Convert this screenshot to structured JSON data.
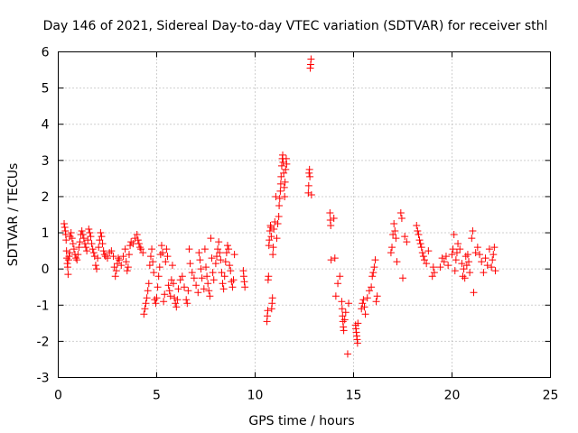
{
  "chart_data": {
    "type": "scatter",
    "title": "Day 146 of 2021, Sidereal Day-to-day VTEC variation (SDTVAR) for receiver sthl",
    "xlabel": "GPS time / hours",
    "ylabel": "SDTVAR / TECUs",
    "xlim": [
      0,
      25
    ],
    "ylim": [
      -3,
      6
    ],
    "xticks": [
      "0",
      "5",
      "10",
      "15",
      "20",
      "25"
    ],
    "yticks": [
      "-3",
      "-2",
      "-1",
      "0",
      "1",
      "2",
      "3",
      "4",
      "5",
      "6"
    ],
    "grid": true,
    "marker": "+",
    "color": "#ff0000",
    "series": [
      {
        "name": "SDTVAR",
        "points": [
          [
            0.3,
            1.25
          ],
          [
            0.33,
            1.15
          ],
          [
            0.36,
            1.05
          ],
          [
            0.38,
            0.95
          ],
          [
            0.4,
            0.8
          ],
          [
            0.42,
            0.5
          ],
          [
            0.44,
            0.3
          ],
          [
            0.46,
            0.15
          ],
          [
            0.48,
            0.05
          ],
          [
            0.5,
            -0.15
          ],
          [
            0.52,
            0.25
          ],
          [
            0.55,
            0.35
          ],
          [
            0.58,
            0.45
          ],
          [
            0.6,
            0.9
          ],
          [
            0.65,
            1.0
          ],
          [
            0.7,
            0.85
          ],
          [
            0.75,
            0.7
          ],
          [
            0.8,
            0.55
          ],
          [
            0.85,
            0.4
          ],
          [
            0.9,
            0.3
          ],
          [
            0.95,
            0.25
          ],
          [
            1.0,
            0.4
          ],
          [
            1.05,
            0.6
          ],
          [
            1.1,
            0.75
          ],
          [
            1.15,
            0.95
          ],
          [
            1.2,
            1.05
          ],
          [
            1.25,
            0.95
          ],
          [
            1.3,
            0.85
          ],
          [
            1.35,
            0.7
          ],
          [
            1.4,
            0.6
          ],
          [
            1.45,
            0.5
          ],
          [
            1.5,
            0.8
          ],
          [
            1.55,
            1.1
          ],
          [
            1.6,
            1.0
          ],
          [
            1.65,
            0.9
          ],
          [
            1.7,
            0.7
          ],
          [
            1.75,
            0.55
          ],
          [
            1.8,
            0.45
          ],
          [
            1.85,
            0.35
          ],
          [
            1.9,
            0.1
          ],
          [
            1.95,
            0.0
          ],
          [
            2.0,
            0.3
          ],
          [
            2.05,
            0.6
          ],
          [
            2.1,
            0.8
          ],
          [
            2.15,
            1.0
          ],
          [
            2.2,
            0.9
          ],
          [
            2.25,
            0.7
          ],
          [
            2.3,
            0.5
          ],
          [
            2.35,
            0.4
          ],
          [
            2.4,
            0.35
          ],
          [
            2.5,
            0.3
          ],
          [
            2.6,
            0.45
          ],
          [
            2.7,
            0.5
          ],
          [
            2.8,
            0.35
          ],
          [
            2.85,
            0.05
          ],
          [
            2.9,
            -0.2
          ],
          [
            2.95,
            -0.05
          ],
          [
            3.0,
            0.15
          ],
          [
            3.05,
            0.3
          ],
          [
            3.1,
            0.25
          ],
          [
            3.2,
            0.1
          ],
          [
            3.3,
            0.35
          ],
          [
            3.4,
            0.55
          ],
          [
            3.45,
            0.2
          ],
          [
            3.5,
            -0.05
          ],
          [
            3.55,
            0.05
          ],
          [
            3.6,
            0.4
          ],
          [
            3.65,
            0.65
          ],
          [
            3.7,
            0.75
          ],
          [
            3.8,
            0.7
          ],
          [
            3.9,
            0.85
          ],
          [
            4.0,
            0.95
          ],
          [
            4.05,
            0.8
          ],
          [
            4.1,
            0.7
          ],
          [
            4.15,
            0.6
          ],
          [
            4.2,
            0.55
          ],
          [
            4.3,
            0.45
          ],
          [
            4.35,
            -1.25
          ],
          [
            4.4,
            -1.1
          ],
          [
            4.45,
            -0.95
          ],
          [
            4.5,
            -0.8
          ],
          [
            4.55,
            -0.6
          ],
          [
            4.6,
            -0.4
          ],
          [
            4.65,
            0.1
          ],
          [
            4.7,
            0.35
          ],
          [
            4.75,
            0.55
          ],
          [
            4.8,
            0.2
          ],
          [
            4.85,
            -0.1
          ],
          [
            4.9,
            -0.85
          ],
          [
            4.95,
            -0.95
          ],
          [
            5.0,
            -0.8
          ],
          [
            5.05,
            -0.5
          ],
          [
            5.1,
            -0.2
          ],
          [
            5.15,
            0.05
          ],
          [
            5.2,
            0.4
          ],
          [
            5.25,
            0.65
          ],
          [
            5.3,
            0.45
          ],
          [
            5.35,
            -0.9
          ],
          [
            5.4,
            -0.7
          ],
          [
            5.45,
            0.2
          ],
          [
            5.5,
            0.55
          ],
          [
            5.55,
            0.35
          ],
          [
            5.6,
            -0.45
          ],
          [
            5.65,
            -0.6
          ],
          [
            5.7,
            -0.75
          ],
          [
            5.75,
            -0.3
          ],
          [
            5.8,
            0.1
          ],
          [
            5.85,
            -0.4
          ],
          [
            5.9,
            -0.8
          ],
          [
            5.95,
            -0.95
          ],
          [
            6.0,
            -1.05
          ],
          [
            6.05,
            -0.85
          ],
          [
            6.1,
            -0.55
          ],
          [
            6.2,
            -0.3
          ],
          [
            6.3,
            -0.2
          ],
          [
            6.4,
            -0.5
          ],
          [
            6.5,
            -0.85
          ],
          [
            6.55,
            -0.95
          ],
          [
            6.6,
            -0.6
          ],
          [
            6.65,
            0.55
          ],
          [
            6.7,
            0.15
          ],
          [
            6.8,
            -0.1
          ],
          [
            6.9,
            -0.25
          ],
          [
            7.0,
            -0.45
          ],
          [
            7.1,
            -0.65
          ],
          [
            7.15,
            0.45
          ],
          [
            7.2,
            0.25
          ],
          [
            7.25,
            0.0
          ],
          [
            7.3,
            -0.25
          ],
          [
            7.4,
            -0.55
          ],
          [
            7.45,
            0.55
          ],
          [
            7.5,
            0.05
          ],
          [
            7.55,
            -0.2
          ],
          [
            7.6,
            -0.4
          ],
          [
            7.65,
            -0.6
          ],
          [
            7.7,
            -0.75
          ],
          [
            7.75,
            0.85
          ],
          [
            7.8,
            0.3
          ],
          [
            7.85,
            -0.1
          ],
          [
            7.9,
            -0.3
          ],
          [
            8.0,
            0.15
          ],
          [
            8.05,
            0.35
          ],
          [
            8.1,
            0.55
          ],
          [
            8.15,
            0.75
          ],
          [
            8.2,
            0.45
          ],
          [
            8.25,
            0.25
          ],
          [
            8.3,
            -0.1
          ],
          [
            8.35,
            -0.4
          ],
          [
            8.4,
            -0.55
          ],
          [
            8.45,
            -0.2
          ],
          [
            8.5,
            0.2
          ],
          [
            8.55,
            0.45
          ],
          [
            8.6,
            0.65
          ],
          [
            8.65,
            0.55
          ],
          [
            8.7,
            0.1
          ],
          [
            8.75,
            -0.05
          ],
          [
            8.8,
            -0.35
          ],
          [
            8.85,
            -0.5
          ],
          [
            8.9,
            -0.3
          ],
          [
            8.95,
            0.4
          ],
          [
            9.4,
            -0.05
          ],
          [
            9.42,
            -0.2
          ],
          [
            9.45,
            -0.35
          ],
          [
            9.48,
            -0.5
          ],
          [
            10.6,
            -1.45
          ],
          [
            10.62,
            -1.3
          ],
          [
            10.64,
            -1.15
          ],
          [
            10.66,
            -0.3
          ],
          [
            10.68,
            -0.2
          ],
          [
            10.7,
            0.65
          ],
          [
            10.72,
            0.8
          ],
          [
            10.75,
            1.05
          ],
          [
            10.78,
            1.2
          ],
          [
            10.8,
            1.15
          ],
          [
            10.82,
            0.9
          ],
          [
            10.84,
            -1.1
          ],
          [
            10.86,
            -0.95
          ],
          [
            10.88,
            -0.8
          ],
          [
            10.9,
            0.4
          ],
          [
            10.92,
            0.6
          ],
          [
            10.95,
            1.1
          ],
          [
            11.0,
            1.3
          ],
          [
            11.05,
            2.0
          ],
          [
            11.1,
            0.85
          ],
          [
            11.15,
            1.25
          ],
          [
            11.2,
            1.45
          ],
          [
            11.22,
            1.75
          ],
          [
            11.25,
            1.95
          ],
          [
            11.28,
            2.15
          ],
          [
            11.3,
            2.35
          ],
          [
            11.32,
            2.55
          ],
          [
            11.35,
            2.85
          ],
          [
            11.38,
            3.05
          ],
          [
            11.4,
            3.15
          ],
          [
            11.42,
            2.95
          ],
          [
            11.45,
            2.65
          ],
          [
            11.48,
            2.25
          ],
          [
            11.5,
            2.0
          ],
          [
            11.52,
            2.4
          ],
          [
            11.55,
            2.75
          ],
          [
            11.58,
            3.05
          ],
          [
            11.6,
            2.9
          ],
          [
            12.7,
            2.1
          ],
          [
            12.72,
            2.3
          ],
          [
            12.74,
            2.65
          ],
          [
            12.76,
            2.75
          ],
          [
            12.78,
            2.55
          ],
          [
            12.8,
            5.55
          ],
          [
            12.82,
            5.65
          ],
          [
            12.84,
            5.8
          ],
          [
            12.86,
            2.05
          ],
          [
            13.8,
            1.55
          ],
          [
            13.82,
            1.35
          ],
          [
            13.84,
            1.2
          ],
          [
            13.86,
            0.25
          ],
          [
            14.0,
            1.4
          ],
          [
            14.05,
            0.3
          ],
          [
            14.1,
            -0.75
          ],
          [
            14.2,
            -0.4
          ],
          [
            14.3,
            -0.2
          ],
          [
            14.4,
            -0.9
          ],
          [
            14.42,
            -1.1
          ],
          [
            14.44,
            -1.3
          ],
          [
            14.46,
            -1.45
          ],
          [
            14.48,
            -1.6
          ],
          [
            14.5,
            -1.7
          ],
          [
            14.55,
            -1.4
          ],
          [
            14.6,
            -1.2
          ],
          [
            14.7,
            -2.35
          ],
          [
            14.75,
            -0.95
          ],
          [
            15.1,
            -1.55
          ],
          [
            15.12,
            -1.65
          ],
          [
            15.14,
            -1.75
          ],
          [
            15.16,
            -1.85
          ],
          [
            15.18,
            -1.95
          ],
          [
            15.2,
            -2.05
          ],
          [
            15.22,
            -1.5
          ],
          [
            15.4,
            -1.1
          ],
          [
            15.45,
            -0.95
          ],
          [
            15.5,
            -0.85
          ],
          [
            15.55,
            -1.05
          ],
          [
            15.6,
            -1.25
          ],
          [
            15.7,
            -0.8
          ],
          [
            15.8,
            -0.6
          ],
          [
            15.9,
            -0.5
          ],
          [
            15.95,
            -0.2
          ],
          [
            16.0,
            -0.1
          ],
          [
            16.05,
            0.05
          ],
          [
            16.1,
            0.25
          ],
          [
            16.15,
            -0.9
          ],
          [
            16.2,
            -0.75
          ],
          [
            16.9,
            0.45
          ],
          [
            16.95,
            0.6
          ],
          [
            17.0,
            0.95
          ],
          [
            17.05,
            1.25
          ],
          [
            17.1,
            1.05
          ],
          [
            17.15,
            0.85
          ],
          [
            17.2,
            0.2
          ],
          [
            17.4,
            1.55
          ],
          [
            17.45,
            1.4
          ],
          [
            17.5,
            -0.25
          ],
          [
            17.6,
            0.9
          ],
          [
            17.7,
            0.75
          ],
          [
            18.2,
            1.2
          ],
          [
            18.25,
            1.05
          ],
          [
            18.3,
            0.95
          ],
          [
            18.35,
            0.8
          ],
          [
            18.4,
            0.7
          ],
          [
            18.45,
            0.6
          ],
          [
            18.5,
            0.45
          ],
          [
            18.55,
            0.35
          ],
          [
            18.6,
            0.25
          ],
          [
            18.7,
            0.15
          ],
          [
            18.8,
            0.5
          ],
          [
            19.0,
            -0.2
          ],
          [
            19.05,
            0.05
          ],
          [
            19.1,
            -0.1
          ],
          [
            19.4,
            0.05
          ],
          [
            19.5,
            0.3
          ],
          [
            19.6,
            0.2
          ],
          [
            19.7,
            0.35
          ],
          [
            19.8,
            0.1
          ],
          [
            20.0,
            0.4
          ],
          [
            20.05,
            0.55
          ],
          [
            20.1,
            0.95
          ],
          [
            20.15,
            -0.05
          ],
          [
            20.2,
            0.25
          ],
          [
            20.25,
            0.45
          ],
          [
            20.3,
            0.7
          ],
          [
            20.4,
            0.55
          ],
          [
            20.5,
            0.15
          ],
          [
            20.55,
            -0.2
          ],
          [
            20.6,
            0.0
          ],
          [
            20.65,
            -0.25
          ],
          [
            20.7,
            0.35
          ],
          [
            20.75,
            0.1
          ],
          [
            20.8,
            0.4
          ],
          [
            20.85,
            0.2
          ],
          [
            20.9,
            -0.1
          ],
          [
            21.0,
            0.85
          ],
          [
            21.05,
            1.05
          ],
          [
            21.1,
            -0.65
          ],
          [
            21.2,
            0.45
          ],
          [
            21.3,
            0.6
          ],
          [
            21.4,
            0.4
          ],
          [
            21.5,
            0.2
          ],
          [
            21.6,
            -0.1
          ],
          [
            21.7,
            0.3
          ],
          [
            21.8,
            0.1
          ],
          [
            21.9,
            0.55
          ],
          [
            22.0,
            0.05
          ],
          [
            22.05,
            0.25
          ],
          [
            22.1,
            0.4
          ],
          [
            22.15,
            0.6
          ],
          [
            22.2,
            -0.05
          ]
        ]
      }
    ]
  }
}
